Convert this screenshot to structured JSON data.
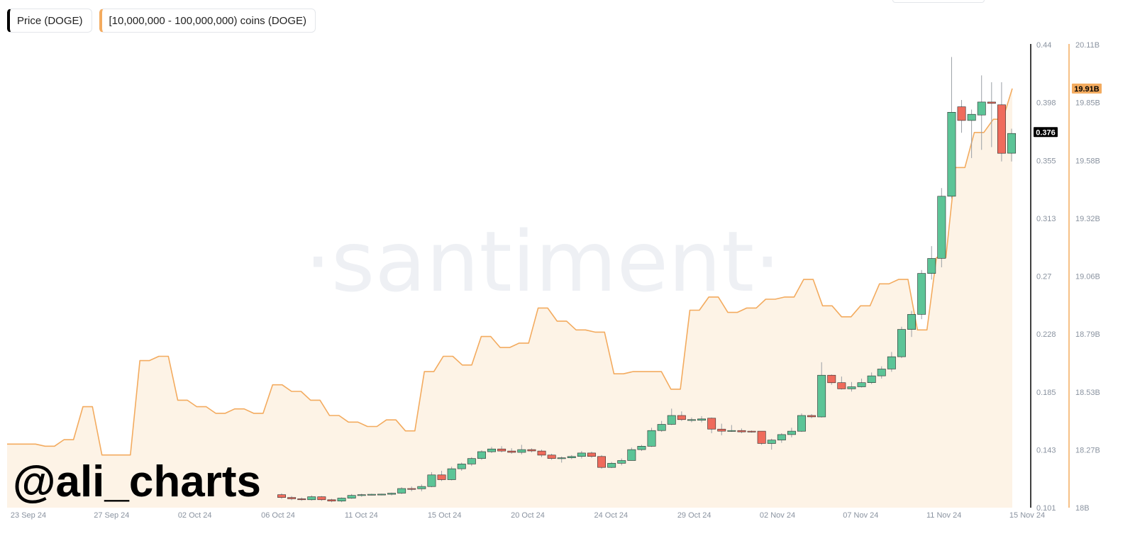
{
  "legend": {
    "price_label": "Price (DOGE)",
    "holdings_label": "[10,000,000 - 100,000,000) coins (DOGE)"
  },
  "watermark": "·santiment·",
  "brand": "@ali_charts",
  "colors": {
    "up": "#5cc497",
    "down": "#ef6b5c",
    "holdings_line": "#f3ab5f",
    "holdings_fill": "#fdf3e6",
    "price_axis": "#000000"
  },
  "chart_data": {
    "type": "candlestick",
    "title": "",
    "x_labels": [
      "23 Sep 24",
      "27 Sep 24",
      "02 Oct 24",
      "06 Oct 24",
      "11 Oct 24",
      "15 Oct 24",
      "20 Oct 24",
      "24 Oct 24",
      "29 Oct 24",
      "02 Nov 24",
      "07 Nov 24",
      "11 Nov 24",
      "15 Nov 24"
    ],
    "price_axis": {
      "ticks": [
        "0.44",
        "0.398",
        "0.355",
        "0.313",
        "0.27",
        "0.228",
        "0.185",
        "0.143",
        "0.101"
      ],
      "range": [
        0.101,
        0.44
      ],
      "current": "0.376"
    },
    "holdings_axis": {
      "ticks": [
        "20.11B",
        "19.85B",
        "19.58B",
        "19.32B",
        "19.06B",
        "18.79B",
        "18.53B",
        "18.27B",
        "18B"
      ],
      "range": [
        18.0,
        20.11
      ],
      "current": "19.91B"
    },
    "series": [
      {
        "name": "Price (DOGE)",
        "kind": "candles",
        "candles": [
          {
            "o": 0.1105,
            "h": 0.1115,
            "l": 0.1075,
            "c": 0.1085
          },
          {
            "o": 0.1085,
            "h": 0.1095,
            "l": 0.1065,
            "c": 0.1075
          },
          {
            "o": 0.1075,
            "h": 0.1085,
            "l": 0.106,
            "c": 0.1068
          },
          {
            "o": 0.1068,
            "h": 0.11,
            "l": 0.1062,
            "c": 0.109
          },
          {
            "o": 0.109,
            "h": 0.1095,
            "l": 0.106,
            "c": 0.1068
          },
          {
            "o": 0.1068,
            "h": 0.1075,
            "l": 0.105,
            "c": 0.1058
          },
          {
            "o": 0.1058,
            "h": 0.1085,
            "l": 0.105,
            "c": 0.108
          },
          {
            "o": 0.108,
            "h": 0.111,
            "l": 0.1075,
            "c": 0.11
          },
          {
            "o": 0.11,
            "h": 0.1112,
            "l": 0.109,
            "c": 0.1105
          },
          {
            "o": 0.1108,
            "h": 0.1112,
            "l": 0.11,
            "c": 0.1108
          },
          {
            "o": 0.1108,
            "h": 0.1112,
            "l": 0.11,
            "c": 0.1109
          },
          {
            "o": 0.1108,
            "h": 0.112,
            "l": 0.11,
            "c": 0.1116
          },
          {
            "o": 0.1116,
            "h": 0.116,
            "l": 0.111,
            "c": 0.115
          },
          {
            "o": 0.115,
            "h": 0.1165,
            "l": 0.113,
            "c": 0.1148
          },
          {
            "o": 0.1148,
            "h": 0.118,
            "l": 0.113,
            "c": 0.1165
          },
          {
            "o": 0.1165,
            "h": 0.127,
            "l": 0.116,
            "c": 0.125
          },
          {
            "o": 0.125,
            "h": 0.128,
            "l": 0.1205,
            "c": 0.1215
          },
          {
            "o": 0.1215,
            "h": 0.131,
            "l": 0.121,
            "c": 0.1295
          },
          {
            "o": 0.1295,
            "h": 0.134,
            "l": 0.128,
            "c": 0.133
          },
          {
            "o": 0.133,
            "h": 0.138,
            "l": 0.1315,
            "c": 0.137
          },
          {
            "o": 0.137,
            "h": 0.143,
            "l": 0.136,
            "c": 0.142
          },
          {
            "o": 0.142,
            "h": 0.1455,
            "l": 0.141,
            "c": 0.144
          },
          {
            "o": 0.144,
            "h": 0.146,
            "l": 0.1415,
            "c": 0.1425
          },
          {
            "o": 0.1425,
            "h": 0.1445,
            "l": 0.1405,
            "c": 0.1415
          },
          {
            "o": 0.1415,
            "h": 0.147,
            "l": 0.14,
            "c": 0.1435
          },
          {
            "o": 0.1435,
            "h": 0.1445,
            "l": 0.1415,
            "c": 0.1425
          },
          {
            "o": 0.1425,
            "h": 0.1435,
            "l": 0.138,
            "c": 0.1395
          },
          {
            "o": 0.1395,
            "h": 0.1405,
            "l": 0.136,
            "c": 0.137
          },
          {
            "o": 0.137,
            "h": 0.1385,
            "l": 0.134,
            "c": 0.1375
          },
          {
            "o": 0.1375,
            "h": 0.1395,
            "l": 0.1365,
            "c": 0.1385
          },
          {
            "o": 0.1385,
            "h": 0.1425,
            "l": 0.137,
            "c": 0.141
          },
          {
            "o": 0.141,
            "h": 0.142,
            "l": 0.1375,
            "c": 0.1385
          },
          {
            "o": 0.1385,
            "h": 0.1395,
            "l": 0.1295,
            "c": 0.1305
          },
          {
            "o": 0.1305,
            "h": 0.1345,
            "l": 0.13,
            "c": 0.1335
          },
          {
            "o": 0.1335,
            "h": 0.137,
            "l": 0.132,
            "c": 0.1355
          },
          {
            "o": 0.1355,
            "h": 0.145,
            "l": 0.1355,
            "c": 0.1435
          },
          {
            "o": 0.1435,
            "h": 0.147,
            "l": 0.1425,
            "c": 0.146
          },
          {
            "o": 0.146,
            "h": 0.1595,
            "l": 0.1455,
            "c": 0.1575
          },
          {
            "o": 0.1575,
            "h": 0.1645,
            "l": 0.1565,
            "c": 0.162
          },
          {
            "o": 0.162,
            "h": 0.1735,
            "l": 0.1615,
            "c": 0.1685
          },
          {
            "o": 0.1685,
            "h": 0.1715,
            "l": 0.1645,
            "c": 0.1655
          },
          {
            "o": 0.1655,
            "h": 0.167,
            "l": 0.1635,
            "c": 0.1655
          },
          {
            "o": 0.165,
            "h": 0.168,
            "l": 0.1635,
            "c": 0.166
          },
          {
            "o": 0.1665,
            "h": 0.167,
            "l": 0.1555,
            "c": 0.1585
          },
          {
            "o": 0.1585,
            "h": 0.1625,
            "l": 0.154,
            "c": 0.157
          },
          {
            "o": 0.157,
            "h": 0.1615,
            "l": 0.1565,
            "c": 0.1575
          },
          {
            "o": 0.1575,
            "h": 0.159,
            "l": 0.1555,
            "c": 0.1565
          },
          {
            "o": 0.157,
            "h": 0.1575,
            "l": 0.156,
            "c": 0.1565
          },
          {
            "o": 0.157,
            "h": 0.157,
            "l": 0.147,
            "c": 0.148
          },
          {
            "o": 0.148,
            "h": 0.1515,
            "l": 0.1435,
            "c": 0.1505
          },
          {
            "o": 0.1505,
            "h": 0.1555,
            "l": 0.1485,
            "c": 0.1545
          },
          {
            "o": 0.1545,
            "h": 0.1595,
            "l": 0.1525,
            "c": 0.157
          },
          {
            "o": 0.157,
            "h": 0.17,
            "l": 0.1565,
            "c": 0.1685
          },
          {
            "o": 0.1685,
            "h": 0.1695,
            "l": 0.1665,
            "c": 0.1675
          },
          {
            "o": 0.1675,
            "h": 0.2075,
            "l": 0.167,
            "c": 0.198
          },
          {
            "o": 0.198,
            "h": 0.1985,
            "l": 0.191,
            "c": 0.1925
          },
          {
            "o": 0.1925,
            "h": 0.197,
            "l": 0.1875,
            "c": 0.188
          },
          {
            "o": 0.188,
            "h": 0.193,
            "l": 0.186,
            "c": 0.1895
          },
          {
            "o": 0.1895,
            "h": 0.1955,
            "l": 0.189,
            "c": 0.1925
          },
          {
            "o": 0.1925,
            "h": 0.2,
            "l": 0.1915,
            "c": 0.1975
          },
          {
            "o": 0.1975,
            "h": 0.2045,
            "l": 0.1955,
            "c": 0.2025
          },
          {
            "o": 0.2025,
            "h": 0.215,
            "l": 0.2005,
            "c": 0.2115
          },
          {
            "o": 0.2115,
            "h": 0.2335,
            "l": 0.2105,
            "c": 0.2315
          },
          {
            "o": 0.2315,
            "h": 0.245,
            "l": 0.226,
            "c": 0.2425
          },
          {
            "o": 0.2425,
            "h": 0.275,
            "l": 0.239,
            "c": 0.2725
          },
          {
            "o": 0.2725,
            "h": 0.2925,
            "l": 0.268,
            "c": 0.2835
          },
          {
            "o": 0.2835,
            "h": 0.335,
            "l": 0.277,
            "c": 0.329
          },
          {
            "o": 0.329,
            "h": 0.431,
            "l": 0.3275,
            "c": 0.3905
          },
          {
            "o": 0.3945,
            "h": 0.3995,
            "l": 0.3755,
            "c": 0.3845
          },
          {
            "o": 0.3845,
            "h": 0.3925,
            "l": 0.357,
            "c": 0.389
          },
          {
            "o": 0.3885,
            "h": 0.4175,
            "l": 0.363,
            "c": 0.398
          },
          {
            "o": 0.398,
            "h": 0.4125,
            "l": 0.365,
            "c": 0.397
          },
          {
            "o": 0.396,
            "h": 0.4125,
            "l": 0.3545,
            "c": 0.3605
          },
          {
            "o": 0.3605,
            "h": 0.3785,
            "l": 0.3545,
            "c": 0.375
          }
        ]
      },
      {
        "name": "[10,000,000 - 100,000,000) coins (DOGE)",
        "kind": "area",
        "values": [
          18.29,
          18.29,
          18.29,
          18.29,
          18.28,
          18.28,
          18.31,
          18.31,
          18.46,
          18.46,
          18.24,
          18.24,
          18.24,
          18.24,
          18.67,
          18.67,
          18.69,
          18.69,
          18.49,
          18.49,
          18.46,
          18.46,
          18.43,
          18.43,
          18.45,
          18.45,
          18.43,
          18.43,
          18.56,
          18.56,
          18.53,
          18.53,
          18.49,
          18.49,
          18.42,
          18.42,
          18.39,
          18.39,
          18.37,
          18.37,
          18.4,
          18.4,
          18.35,
          18.35,
          18.62,
          18.62,
          18.69,
          18.69,
          18.65,
          18.65,
          18.78,
          18.78,
          18.73,
          18.73,
          18.75,
          18.75,
          18.91,
          18.91,
          18.85,
          18.85,
          18.81,
          18.81,
          18.8,
          18.8,
          18.61,
          18.61,
          18.62,
          18.62,
          18.62,
          18.62,
          18.54,
          18.54,
          18.9,
          18.9,
          18.96,
          18.96,
          18.89,
          18.89,
          18.91,
          18.91,
          18.95,
          18.95,
          18.96,
          18.96,
          19.04,
          19.04,
          18.92,
          18.92,
          18.87,
          18.87,
          18.92,
          18.92,
          19.02,
          19.02,
          19.04,
          19.04,
          18.81,
          18.81,
          19.14,
          19.14,
          19.55,
          19.55,
          19.71,
          19.71,
          19.77,
          19.77,
          19.91
        ]
      }
    ],
    "ylabel": "",
    "xlabel": ""
  }
}
